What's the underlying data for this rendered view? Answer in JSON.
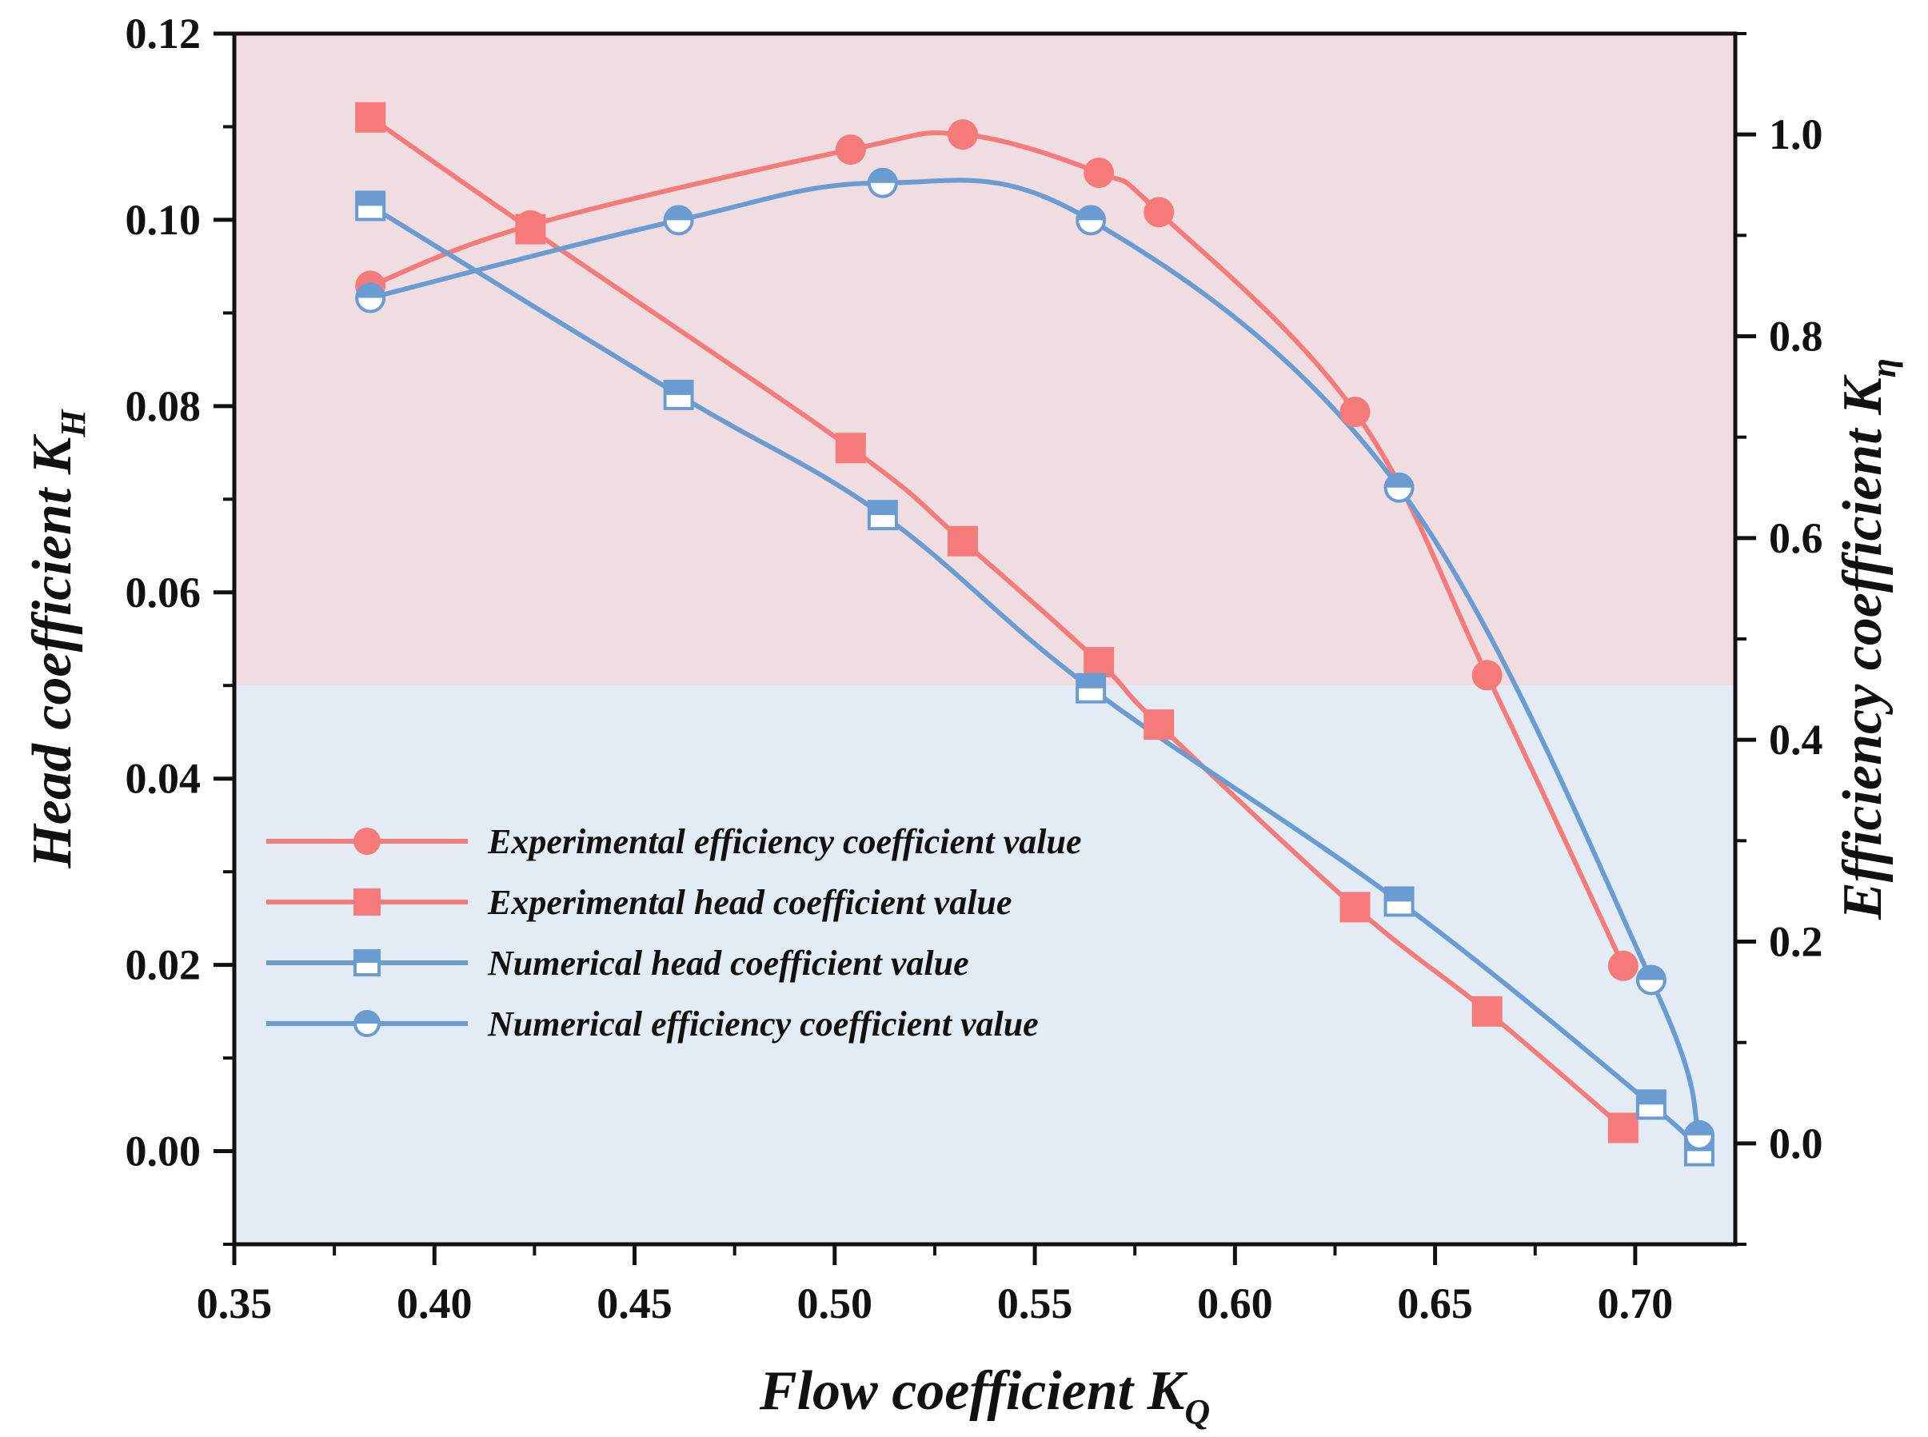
{
  "chart_data": {
    "type": "line",
    "xlabel": {
      "main": "Flow coefficient K",
      "sub": "Q"
    },
    "ylabel_left": {
      "main": "Head coefficient K",
      "sub": "H"
    },
    "ylabel_right": {
      "main": "Efficiency coefficient K",
      "sub": "η"
    },
    "xlim": [
      0.35,
      0.725
    ],
    "ylim_left": [
      -0.01,
      0.12
    ],
    "ylim_right": [
      -0.1,
      1.1
    ],
    "x_ticks": [
      "0.35",
      "0.40",
      "0.45",
      "0.50",
      "0.55",
      "0.60",
      "0.65",
      "0.70"
    ],
    "y_left_ticks": [
      "0.00",
      "0.02",
      "0.04",
      "0.06",
      "0.08",
      "0.10",
      "0.12"
    ],
    "y_right_ticks": [
      "0.0",
      "0.2",
      "0.4",
      "0.6",
      "0.8",
      "1.0"
    ],
    "background_bands": [
      {
        "name": "upper",
        "from_left": 0.05,
        "to_left": 0.12,
        "color": "#f0dde2"
      },
      {
        "name": "lower",
        "from_left": -0.01,
        "to_left": 0.05,
        "color": "#e3ecf5"
      }
    ],
    "series": [
      {
        "name": "Experimental efficiency coefficient value",
        "axis": "right",
        "marker": "circle",
        "color": "#f57a7a",
        "x": [
          0.384,
          0.424,
          0.504,
          0.532,
          0.566,
          0.581,
          0.63,
          0.663,
          0.697
        ],
        "y": [
          0.85,
          0.91,
          0.985,
          1.0,
          0.962,
          0.923,
          0.725,
          0.464,
          0.176
        ]
      },
      {
        "name": "Experimental head coefficient value",
        "axis": "left",
        "marker": "square",
        "color": "#f57a7a",
        "x": [
          0.384,
          0.424,
          0.504,
          0.532,
          0.566,
          0.581,
          0.63,
          0.663,
          0.697
        ],
        "y": [
          0.111,
          0.099,
          0.0755,
          0.0655,
          0.0525,
          0.0458,
          0.0262,
          0.015,
          0.0025
        ]
      },
      {
        "name": "Numerical head coefficient value",
        "axis": "left",
        "marker": "half-square",
        "color": "#6a9bd1",
        "x": [
          0.384,
          0.461,
          0.512,
          0.564,
          0.641,
          0.704,
          0.716
        ],
        "y": [
          0.1015,
          0.0812,
          0.0683,
          0.0497,
          0.0268,
          0.005,
          0.0
        ]
      },
      {
        "name": "Numerical efficiency coefficient value",
        "axis": "right",
        "marker": "half-circle",
        "color": "#6a9bd1",
        "x": [
          0.384,
          0.461,
          0.512,
          0.564,
          0.641,
          0.704,
          0.716
        ],
        "y": [
          0.838,
          0.915,
          0.952,
          0.915,
          0.65,
          0.162,
          0.008
        ]
      }
    ],
    "legend": [
      "Experimental efficiency coefficient value",
      "Experimental head coefficient value",
      "Numerical head coefficient value",
      "Numerical efficiency coefficient value"
    ]
  }
}
